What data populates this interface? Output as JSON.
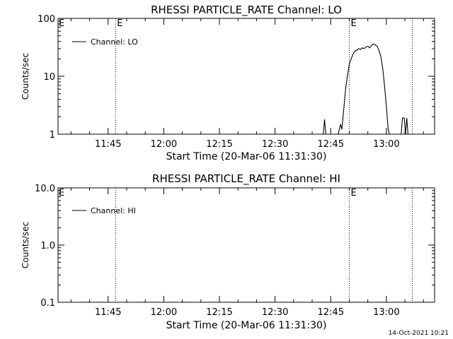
{
  "chart_data": [
    {
      "type": "line",
      "title": "RHESSI PARTICLE_RATE Channel: LO",
      "xlabel": "Start Time (20-Mar-06 11:31:30)",
      "ylabel": "Counts/sec",
      "y_scale": "log",
      "ylim": [
        1,
        100
      ],
      "y_ticks": [
        "1",
        "10",
        "100"
      ],
      "xlim": [
        "11:31:30",
        "13:13:00"
      ],
      "x_ticks": [
        "11:45",
        "12:00",
        "12:15",
        "12:30",
        "12:45",
        "13:00"
      ],
      "legend": {
        "label": "Channel: LO",
        "placement": "top-left"
      },
      "event_lines": [
        {
          "time": "11:47:00",
          "label": "E"
        },
        {
          "time": "12:50:00",
          "label": "E"
        },
        {
          "time": "13:07:00",
          "label": ""
        }
      ],
      "edge_markers": [
        {
          "side": "left",
          "label": "E"
        }
      ],
      "series": [
        {
          "name": "Channel: LO",
          "segments": [
            [
              [
                "12:43:00",
                1
              ],
              [
                "12:43:20",
                1.8
              ],
              [
                "12:43:40",
                1
              ]
            ],
            [
              [
                "12:47:00",
                1
              ],
              [
                "12:47:40",
                1.5
              ],
              [
                "12:48:00",
                1.2
              ],
              [
                "12:48:20",
                2.0
              ],
              [
                "12:48:40",
                3.5
              ],
              [
                "12:49:00",
                6
              ],
              [
                "12:49:30",
                10
              ],
              [
                "12:50:00",
                16
              ],
              [
                "12:50:30",
                20
              ],
              [
                "12:51:00",
                24
              ],
              [
                "12:51:30",
                27
              ],
              [
                "12:52:00",
                28
              ],
              [
                "12:52:30",
                30
              ],
              [
                "12:53:00",
                29
              ],
              [
                "12:53:30",
                31
              ],
              [
                "12:54:00",
                30
              ],
              [
                "12:54:30",
                32
              ],
              [
                "12:55:00",
                33
              ],
              [
                "12:55:30",
                31
              ],
              [
                "12:56:00",
                34
              ],
              [
                "12:56:30",
                36
              ],
              [
                "12:57:00",
                35
              ],
              [
                "12:57:30",
                33
              ],
              [
                "12:58:00",
                28
              ],
              [
                "12:58:30",
                22
              ],
              [
                "12:59:00",
                14
              ],
              [
                "12:59:30",
                7
              ],
              [
                "13:00:00",
                3
              ],
              [
                "13:00:30",
                1.2
              ],
              [
                "13:00:50",
                1
              ]
            ],
            [
              [
                "13:04:00",
                1
              ],
              [
                "13:04:20",
                1.9
              ],
              [
                "13:04:50",
                1.9
              ],
              [
                "13:05:10",
                1
              ],
              [
                "13:05:30",
                1.9
              ],
              [
                "13:05:50",
                1
              ]
            ]
          ]
        }
      ]
    },
    {
      "type": "line",
      "title": "RHESSI PARTICLE_RATE Channel: HI",
      "xlabel": "Start Time (20-Mar-06 11:31:30)",
      "ylabel": "Counts/sec",
      "y_scale": "log",
      "ylim": [
        0.1,
        10
      ],
      "y_ticks": [
        "0.1",
        "1.0",
        "10.0"
      ],
      "xlim": [
        "11:31:30",
        "13:13:00"
      ],
      "x_ticks": [
        "11:45",
        "12:00",
        "12:15",
        "12:30",
        "12:45",
        "13:00"
      ],
      "legend": {
        "label": "Channel: HI",
        "placement": "top-left"
      },
      "event_lines": [
        {
          "time": "11:47:00",
          "label": ""
        },
        {
          "time": "12:50:00",
          "label": "E"
        },
        {
          "time": "13:07:00",
          "label": ""
        }
      ],
      "edge_markers": [
        {
          "side": "left",
          "label": "E"
        }
      ],
      "series": [
        {
          "name": "Channel: HI",
          "segments": []
        }
      ]
    }
  ],
  "footer": {
    "timestamp": "14-Oct-2021 10:21"
  }
}
